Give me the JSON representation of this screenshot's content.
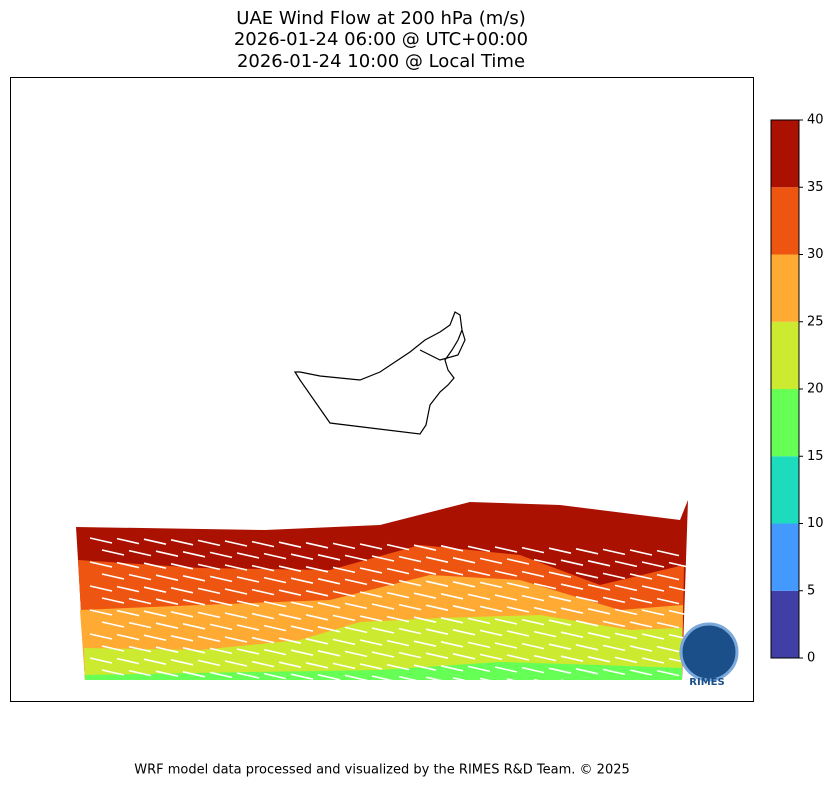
{
  "map": {
    "title": [
      "UAE Wind Flow at 200 hPa (m/s)",
      "2026-01-24 06:00 @ UTC+00:00",
      "2026-01-24 10:00 @ Local Time"
    ],
    "colorbar": {
      "lim": [
        0,
        40
      ],
      "ticks": [
        0,
        5,
        10,
        15,
        20,
        25,
        30,
        35,
        40
      ],
      "colors": [
        "#3f3fa6",
        "#4499ff",
        "#1ddbbd",
        "#66ff55",
        "#ccea30",
        "#ffaa33",
        "#ee5511",
        "#aa1100"
      ]
    },
    "logo": "RIMES",
    "footer": "WRF model data processed and visualized by the RIMES R&D Team. © 2025"
  }
}
